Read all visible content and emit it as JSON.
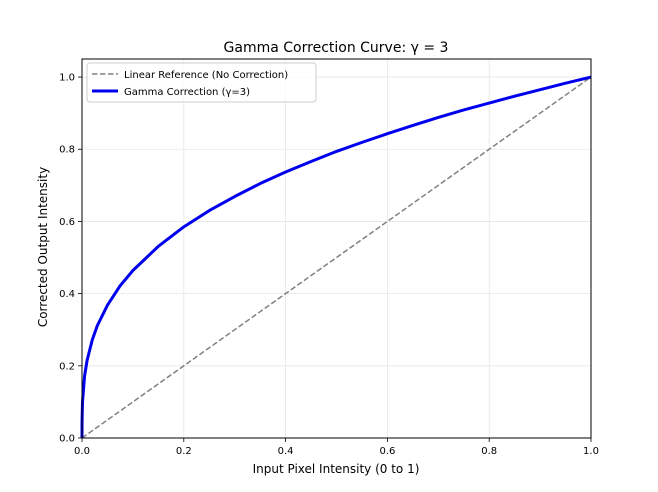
{
  "chart_data": {
    "type": "line",
    "title": "Gamma Correction Curve: γ = 3",
    "xlabel": "Input Pixel Intensity (0 to 1)",
    "ylabel": "Corrected Output Intensity",
    "xlim": [
      0,
      1
    ],
    "ylim": [
      0,
      1.05
    ],
    "xticks": [
      0.0,
      0.2,
      0.4,
      0.6,
      0.8,
      1.0
    ],
    "yticks": [
      0.0,
      0.2,
      0.4,
      0.6,
      0.8,
      1.0
    ],
    "xtick_labels": [
      "0.0",
      "0.2",
      "0.4",
      "0.6",
      "0.8",
      "1.0"
    ],
    "ytick_labels": [
      "0.0",
      "0.2",
      "0.4",
      "0.6",
      "0.8",
      "1.0"
    ],
    "grid": true,
    "legend_position": "top-left",
    "series": [
      {
        "name": "Linear Reference (No Correction)",
        "color": "#808080",
        "style": "dashed",
        "x": [
          0,
          1
        ],
        "y": [
          0,
          1
        ]
      },
      {
        "name": "Gamma Correction (γ=3)",
        "color": "#0000ee",
        "style": "solid",
        "x": [
          0,
          0.0001,
          0.001,
          0.005,
          0.01,
          0.02,
          0.03,
          0.05,
          0.075,
          0.1,
          0.15,
          0.2,
          0.25,
          0.3,
          0.35,
          0.4,
          0.45,
          0.5,
          0.55,
          0.6,
          0.65,
          0.7,
          0.75,
          0.8,
          0.85,
          0.9,
          0.95,
          1.0
        ],
        "y": [
          0,
          0.046,
          0.1,
          0.171,
          0.215,
          0.271,
          0.311,
          0.368,
          0.422,
          0.464,
          0.531,
          0.585,
          0.63,
          0.669,
          0.705,
          0.737,
          0.766,
          0.794,
          0.819,
          0.843,
          0.866,
          0.888,
          0.909,
          0.928,
          0.947,
          0.965,
          0.983,
          1.0
        ]
      }
    ]
  }
}
